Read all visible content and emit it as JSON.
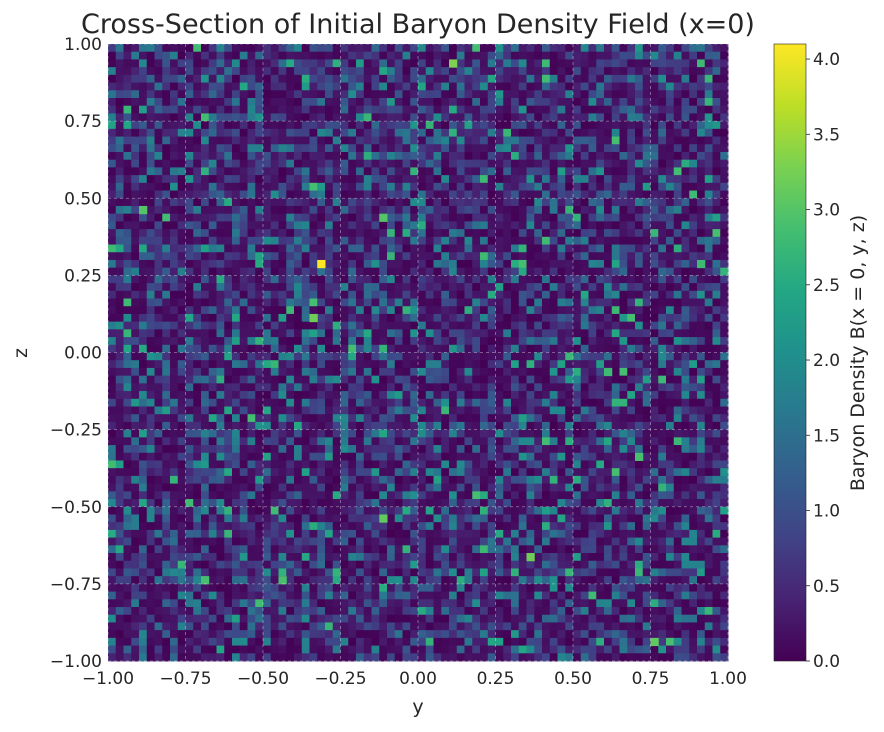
{
  "chart_data": {
    "type": "heatmap",
    "title": "Cross-Section of Initial Baryon Density Field (x=0)",
    "xlabel": "y",
    "ylabel": "z",
    "xlim": [
      -1.0,
      1.0
    ],
    "ylim": [
      -1.0,
      1.0
    ],
    "x_ticks": [
      "−1.00",
      "−0.75",
      "−0.50",
      "−0.25",
      "0.00",
      "0.25",
      "0.50",
      "0.75",
      "1.00"
    ],
    "y_ticks": [
      "−1.00",
      "−0.75",
      "−0.50",
      "−0.25",
      "0.00",
      "0.25",
      "0.50",
      "0.75",
      "1.00"
    ],
    "grid": true,
    "grid_cells": [
      80,
      80
    ],
    "colormap": "viridis",
    "colorbar": {
      "label": "Baryon Density B(x = 0, y, z)",
      "range": [
        0.0,
        4.1
      ],
      "ticks": [
        "0.0",
        "0.5",
        "1.0",
        "1.5",
        "2.0",
        "2.5",
        "3.0",
        "3.5",
        "4.0"
      ]
    },
    "field_distribution": "random, mostly 0.0–1.0 with sparse values up to ~3.0",
    "peaks": [
      {
        "y": -0.31,
        "z": 0.29,
        "value": 4.1
      },
      {
        "y": 0.11,
        "z": 0.94,
        "value": 3.3
      },
      {
        "y": 0.77,
        "z": -0.93,
        "value": 3.1
      },
      {
        "y": -0.35,
        "z": 0.11,
        "value": 3.2
      },
      {
        "y": 0.35,
        "z": -0.67,
        "value": 3.2
      },
      {
        "y": -0.11,
        "z": -0.54,
        "value": 3.1
      },
      {
        "y": -0.89,
        "z": 0.47,
        "value": 3.0
      },
      {
        "y": -0.11,
        "z": 0.45,
        "value": 3.0
      },
      {
        "y": 0.71,
        "z": -0.34,
        "value": 2.9
      },
      {
        "y": 0.91,
        "z": 0.29,
        "value": 2.8
      },
      {
        "y": -0.43,
        "z": -0.73,
        "value": 2.9
      },
      {
        "y": -0.69,
        "z": -0.73,
        "value": 2.9
      },
      {
        "y": 0.61,
        "z": -0.05,
        "value": 2.8
      }
    ]
  }
}
